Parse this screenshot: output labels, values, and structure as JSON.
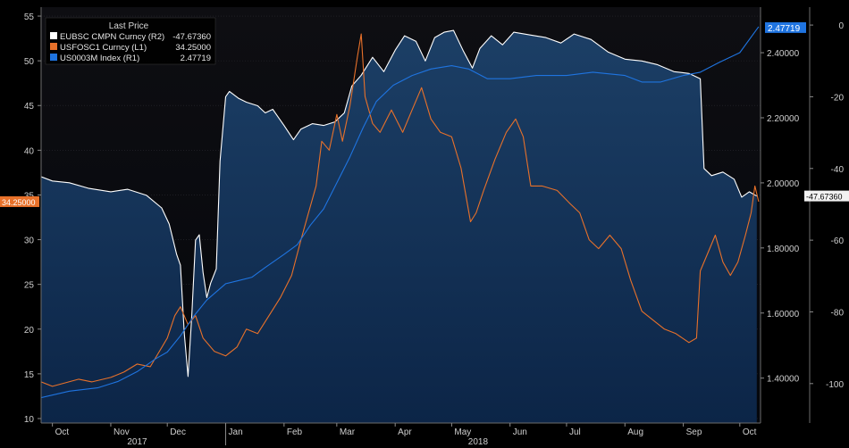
{
  "chart_data": {
    "type": "line",
    "legend": {
      "title": "Last Price",
      "placement": "top-left",
      "entries": [
        {
          "name": "EUBSC CMPN Curncy (R2)",
          "value": "-47.67360",
          "color": "#ffffff"
        },
        {
          "name": "USFOSC1 Curncy (L1)",
          "value": "34.25000",
          "color": "#e8712a"
        },
        {
          "name": "US0003M Index (R1)",
          "value": "2.47719",
          "color": "#1f74e0"
        }
      ]
    },
    "x_axis": {
      "range": [
        "2017-09-25",
        "2018-10-12"
      ],
      "ticks": [
        {
          "date": "2017-10-01",
          "label": "Oct"
        },
        {
          "date": "2017-11-01",
          "label": "Nov"
        },
        {
          "date": "2017-12-01",
          "label": "Dec"
        },
        {
          "date": "2018-01-01",
          "label": "Jan"
        },
        {
          "date": "2018-02-01",
          "label": "Feb"
        },
        {
          "date": "2018-03-01",
          "label": "Mar"
        },
        {
          "date": "2018-04-01",
          "label": "Apr"
        },
        {
          "date": "2018-05-01",
          "label": "May"
        },
        {
          "date": "2018-06-01",
          "label": "Jun"
        },
        {
          "date": "2018-07-01",
          "label": "Jul"
        },
        {
          "date": "2018-08-01",
          "label": "Aug"
        },
        {
          "date": "2018-09-01",
          "label": "Sep"
        },
        {
          "date": "2018-10-01",
          "label": "Oct"
        }
      ],
      "year_labels": [
        {
          "date": "2017-11-15",
          "label": "2017"
        },
        {
          "date": "2018-05-15",
          "label": "2018"
        }
      ],
      "year_separator": "2018-01-01"
    },
    "y_left": {
      "range": [
        9.5,
        56
      ],
      "ticks": [
        10,
        15,
        20,
        25,
        30,
        35,
        40,
        45,
        50,
        55
      ],
      "tag": "34.25000",
      "tag_value": 34.25
    },
    "y_right1": {
      "range": [
        1.262,
        2.54
      ],
      "ticks": [
        "1.40000",
        "1.60000",
        "1.80000",
        "2.00000",
        "2.20000",
        "2.40000"
      ],
      "tag": "2.47719",
      "tag_value": 2.47719
    },
    "y_right2": {
      "range": [
        -111,
        5
      ],
      "ticks": [
        -100,
        -80,
        -60,
        -40,
        -20,
        0
      ],
      "tag": "-47.67360",
      "tag_value": -47.6736
    },
    "series": [
      {
        "name": "EUBSC CMPN Curncy (R2)",
        "axis": "right2",
        "color": "#ffffff",
        "fill": true,
        "points": [
          [
            "2017-09-25",
            -42.3
          ],
          [
            "2017-10-01",
            -43.5
          ],
          [
            "2017-10-10",
            -44.0
          ],
          [
            "2017-10-20",
            -45.5
          ],
          [
            "2017-11-01",
            -46.5
          ],
          [
            "2017-11-10",
            -45.8
          ],
          [
            "2017-11-20",
            -47.5
          ],
          [
            "2017-11-28",
            -51.0
          ],
          [
            "2017-12-02",
            -55.5
          ],
          [
            "2017-12-06",
            -64.0
          ],
          [
            "2017-12-08",
            -67.0
          ],
          [
            "2017-12-10",
            -86.0
          ],
          [
            "2017-12-12",
            -98.0
          ],
          [
            "2017-12-14",
            -81.0
          ],
          [
            "2017-12-16",
            -60.0
          ],
          [
            "2017-12-18",
            -58.5
          ],
          [
            "2017-12-20",
            -69.0
          ],
          [
            "2017-12-22",
            -76.0
          ],
          [
            "2017-12-24",
            -72.0
          ],
          [
            "2017-12-27",
            -68.0
          ],
          [
            "2017-12-29",
            -38.0
          ],
          [
            "2018-01-01",
            -20.0
          ],
          [
            "2018-01-03",
            -18.5
          ],
          [
            "2018-01-08",
            -20.5
          ],
          [
            "2018-01-12",
            -21.5
          ],
          [
            "2018-01-18",
            -22.5
          ],
          [
            "2018-01-22",
            -24.5
          ],
          [
            "2018-01-26",
            -23.5
          ],
          [
            "2018-02-01",
            -28.0
          ],
          [
            "2018-02-06",
            -32.0
          ],
          [
            "2018-02-10",
            -29.0
          ],
          [
            "2018-02-16",
            -27.5
          ],
          [
            "2018-02-22",
            -28.0
          ],
          [
            "2018-02-28",
            -27.0
          ],
          [
            "2018-03-05",
            -24.5
          ],
          [
            "2018-03-09",
            -17.0
          ],
          [
            "2018-03-14",
            -14.0
          ],
          [
            "2018-03-20",
            -9.0
          ],
          [
            "2018-03-26",
            -13.0
          ],
          [
            "2018-04-01",
            -7.0
          ],
          [
            "2018-04-06",
            -3.0
          ],
          [
            "2018-04-12",
            -4.5
          ],
          [
            "2018-04-17",
            -10.0
          ],
          [
            "2018-04-22",
            -3.5
          ],
          [
            "2018-04-27",
            -2.0
          ],
          [
            "2018-05-02",
            -1.5
          ],
          [
            "2018-05-07",
            -7.0
          ],
          [
            "2018-05-12",
            -12.0
          ],
          [
            "2018-05-16",
            -6.5
          ],
          [
            "2018-05-22",
            -3.0
          ],
          [
            "2018-05-28",
            -5.5
          ],
          [
            "2018-06-03",
            -2.0
          ],
          [
            "2018-06-12",
            -2.8
          ],
          [
            "2018-06-20",
            -3.5
          ],
          [
            "2018-06-28",
            -5.0
          ],
          [
            "2018-07-05",
            -2.5
          ],
          [
            "2018-07-14",
            -4.0
          ],
          [
            "2018-07-23",
            -7.5
          ],
          [
            "2018-08-01",
            -9.5
          ],
          [
            "2018-08-10",
            -10.0
          ],
          [
            "2018-08-18",
            -11.0
          ],
          [
            "2018-08-27",
            -13.0
          ],
          [
            "2018-09-04",
            -13.5
          ],
          [
            "2018-09-10",
            -15.0
          ],
          [
            "2018-09-12",
            -40.0
          ],
          [
            "2018-09-16",
            -42.0
          ],
          [
            "2018-09-22",
            -41.0
          ],
          [
            "2018-09-28",
            -43.0
          ],
          [
            "2018-10-02",
            -48.0
          ],
          [
            "2018-10-06",
            -46.5
          ],
          [
            "2018-10-10",
            -47.7
          ]
        ]
      },
      {
        "name": "USFOSC1 Curncy (L1)",
        "axis": "left",
        "color": "#e8712a",
        "fill": false,
        "points": [
          [
            "2017-09-25",
            14.1
          ],
          [
            "2017-10-01",
            13.6
          ],
          [
            "2017-10-08",
            14.0
          ],
          [
            "2017-10-15",
            14.4
          ],
          [
            "2017-10-22",
            14.1
          ],
          [
            "2017-11-01",
            14.6
          ],
          [
            "2017-11-08",
            15.2
          ],
          [
            "2017-11-15",
            16.1
          ],
          [
            "2017-11-22",
            15.8
          ],
          [
            "2017-12-01",
            19.0
          ],
          [
            "2017-12-05",
            21.5
          ],
          [
            "2017-12-08",
            22.5
          ],
          [
            "2017-12-12",
            20.5
          ],
          [
            "2017-12-16",
            21.5
          ],
          [
            "2017-12-20",
            19.0
          ],
          [
            "2017-12-26",
            17.5
          ],
          [
            "2018-01-01",
            17.0
          ],
          [
            "2018-01-07",
            18.0
          ],
          [
            "2018-01-12",
            20.0
          ],
          [
            "2018-01-18",
            19.5
          ],
          [
            "2018-01-24",
            21.5
          ],
          [
            "2018-01-30",
            23.5
          ],
          [
            "2018-02-05",
            26.0
          ],
          [
            "2018-02-10",
            30.0
          ],
          [
            "2018-02-14",
            33.0
          ],
          [
            "2018-02-18",
            36.0
          ],
          [
            "2018-02-21",
            41.0
          ],
          [
            "2018-02-25",
            40.0
          ],
          [
            "2018-03-01",
            44.0
          ],
          [
            "2018-03-04",
            41.0
          ],
          [
            "2018-03-08",
            45.0
          ],
          [
            "2018-03-12",
            50.5
          ],
          [
            "2018-03-14",
            53.0
          ],
          [
            "2018-03-16",
            46.0
          ],
          [
            "2018-03-20",
            43.0
          ],
          [
            "2018-03-24",
            42.0
          ],
          [
            "2018-03-30",
            44.5
          ],
          [
            "2018-04-05",
            42.0
          ],
          [
            "2018-04-10",
            44.5
          ],
          [
            "2018-04-15",
            47.0
          ],
          [
            "2018-04-20",
            43.5
          ],
          [
            "2018-04-25",
            42.0
          ],
          [
            "2018-05-01",
            41.5
          ],
          [
            "2018-05-06",
            38.0
          ],
          [
            "2018-05-11",
            32.0
          ],
          [
            "2018-05-14",
            33.0
          ],
          [
            "2018-05-18",
            35.5
          ],
          [
            "2018-05-24",
            39.0
          ],
          [
            "2018-05-30",
            42.0
          ],
          [
            "2018-06-04",
            43.5
          ],
          [
            "2018-06-08",
            41.5
          ],
          [
            "2018-06-12",
            36.0
          ],
          [
            "2018-06-18",
            36.0
          ],
          [
            "2018-06-26",
            35.5
          ],
          [
            "2018-07-03",
            34.0
          ],
          [
            "2018-07-08",
            33.0
          ],
          [
            "2018-07-13",
            30.0
          ],
          [
            "2018-07-18",
            29.0
          ],
          [
            "2018-07-24",
            30.5
          ],
          [
            "2018-07-30",
            29.0
          ],
          [
            "2018-08-04",
            25.5
          ],
          [
            "2018-08-10",
            22.0
          ],
          [
            "2018-08-16",
            21.0
          ],
          [
            "2018-08-22",
            20.0
          ],
          [
            "2018-08-28",
            19.5
          ],
          [
            "2018-09-04",
            18.5
          ],
          [
            "2018-09-08",
            19.0
          ],
          [
            "2018-09-10",
            26.5
          ],
          [
            "2018-09-14",
            28.5
          ],
          [
            "2018-09-18",
            30.5
          ],
          [
            "2018-09-22",
            27.5
          ],
          [
            "2018-09-26",
            26.0
          ],
          [
            "2018-09-30",
            27.5
          ],
          [
            "2018-10-04",
            30.5
          ],
          [
            "2018-10-07",
            33.0
          ],
          [
            "2018-10-09",
            36.0
          ],
          [
            "2018-10-11",
            34.25
          ]
        ]
      },
      {
        "name": "US0003M Index (R1)",
        "axis": "right1",
        "color": "#1f74e0",
        "fill": false,
        "points": [
          [
            "2017-09-25",
            1.34
          ],
          [
            "2017-10-10",
            1.36
          ],
          [
            "2017-10-25",
            1.37
          ],
          [
            "2017-11-05",
            1.39
          ],
          [
            "2017-11-15",
            1.42
          ],
          [
            "2017-11-25",
            1.46
          ],
          [
            "2017-12-01",
            1.48
          ],
          [
            "2017-12-08",
            1.53
          ],
          [
            "2017-12-15",
            1.59
          ],
          [
            "2017-12-22",
            1.64
          ],
          [
            "2018-01-01",
            1.69
          ],
          [
            "2018-01-08",
            1.7
          ],
          [
            "2018-01-15",
            1.71
          ],
          [
            "2018-01-22",
            1.74
          ],
          [
            "2018-02-01",
            1.78
          ],
          [
            "2018-02-08",
            1.81
          ],
          [
            "2018-02-15",
            1.87
          ],
          [
            "2018-02-22",
            1.92
          ],
          [
            "2018-03-01",
            2.0
          ],
          [
            "2018-03-08",
            2.08
          ],
          [
            "2018-03-15",
            2.17
          ],
          [
            "2018-03-22",
            2.25
          ],
          [
            "2018-03-31",
            2.3
          ],
          [
            "2018-04-10",
            2.33
          ],
          [
            "2018-04-20",
            2.35
          ],
          [
            "2018-05-01",
            2.36
          ],
          [
            "2018-05-10",
            2.35
          ],
          [
            "2018-05-20",
            2.32
          ],
          [
            "2018-06-01",
            2.32
          ],
          [
            "2018-06-15",
            2.33
          ],
          [
            "2018-07-01",
            2.33
          ],
          [
            "2018-07-15",
            2.34
          ],
          [
            "2018-08-01",
            2.33
          ],
          [
            "2018-08-10",
            2.31
          ],
          [
            "2018-08-20",
            2.31
          ],
          [
            "2018-09-01",
            2.33
          ],
          [
            "2018-09-10",
            2.34
          ],
          [
            "2018-09-20",
            2.37
          ],
          [
            "2018-10-01",
            2.4
          ],
          [
            "2018-10-11",
            2.48
          ]
        ]
      }
    ]
  }
}
